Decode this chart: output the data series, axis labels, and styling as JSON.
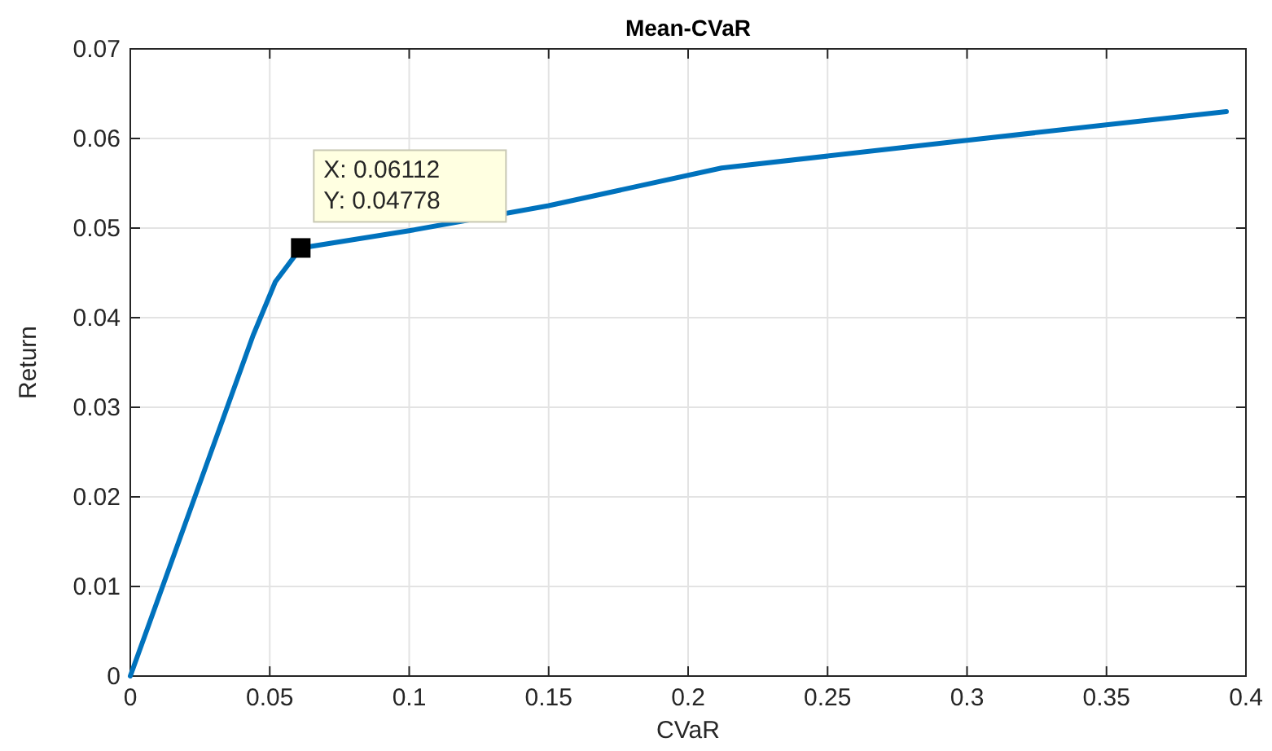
{
  "chart_data": {
    "type": "line",
    "title": "Mean-CVaR",
    "xlabel": "CVaR",
    "ylabel": "Return",
    "x": [
      0,
      0.044,
      0.052,
      0.06112,
      0.1,
      0.15,
      0.212,
      0.3,
      0.393
    ],
    "series": [
      {
        "color": "#0072bd",
        "values": [
          0,
          0.038,
          0.044,
          0.04778,
          0.0497,
          0.0525,
          0.0567,
          0.0598,
          0.063
        ]
      }
    ],
    "xlim": [
      0,
      0.4
    ],
    "xticks": [
      0,
      0.05,
      0.1,
      0.15,
      0.2,
      0.25,
      0.3,
      0.35,
      0.4
    ],
    "ylim": [
      0,
      0.07
    ],
    "yticks": [
      0,
      0.01,
      0.02,
      0.03,
      0.04,
      0.05,
      0.06,
      0.07
    ],
    "grid": true,
    "annotations": [
      {
        "text": "X: 0.06112\nY: 0.04778",
        "x": 0.06112,
        "y": 0.04778
      }
    ]
  }
}
